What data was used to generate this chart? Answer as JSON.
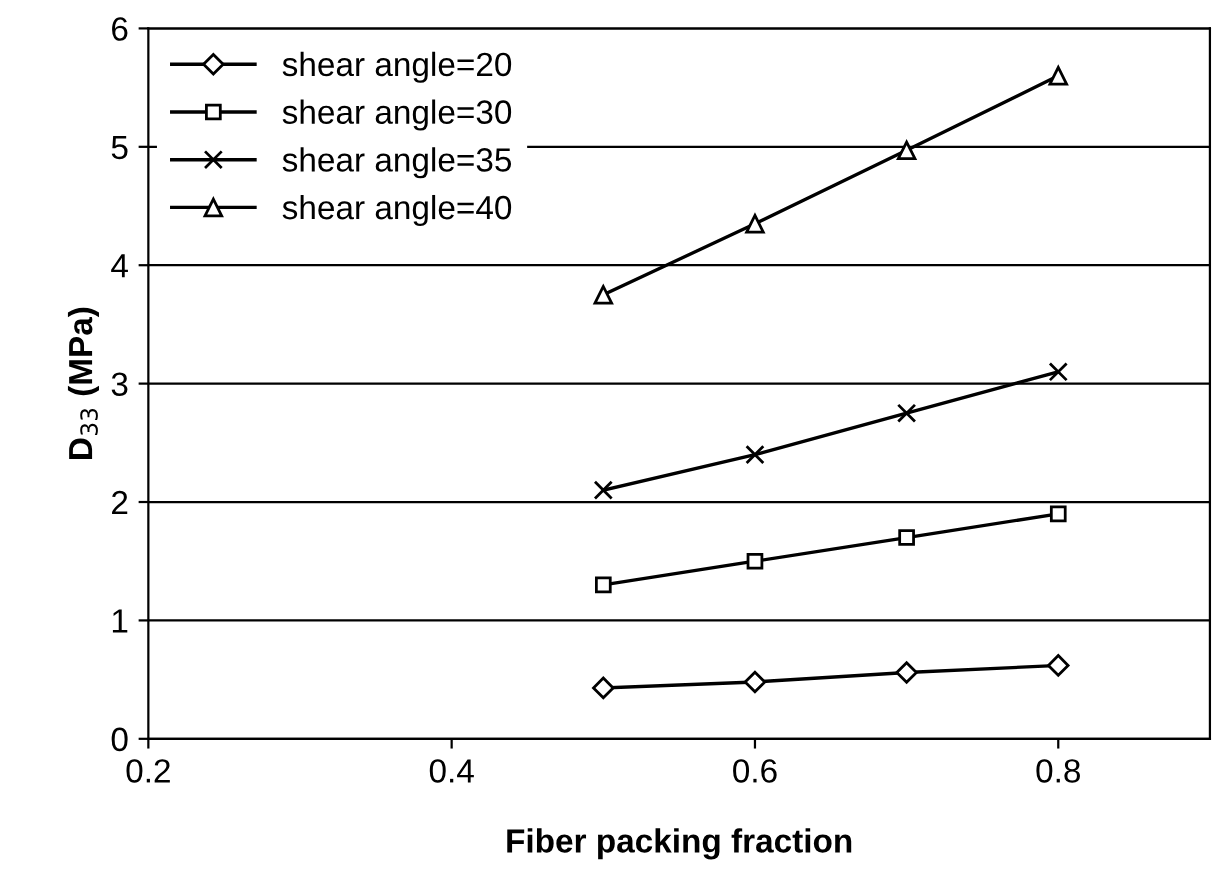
{
  "chart_data": {
    "type": "line",
    "xlabel": "Fiber packing fraction",
    "ylabel": "D$_{33}$ (MPa)",
    "xlim": [
      0.2,
      0.9
    ],
    "xticks": [
      0.2,
      0.4,
      0.6,
      0.8
    ],
    "ylim": [
      0,
      6
    ],
    "yticks": [
      0,
      1,
      2,
      3,
      4,
      5,
      6
    ],
    "grid": "y",
    "legend": "top left",
    "line_style": "solid",
    "series": [
      {
        "name": "shear angle=20",
        "color": "#000000",
        "marker": "diamond",
        "x": [
          0.5,
          0.6,
          0.7,
          0.8
        ],
        "values": [
          0.43,
          0.48,
          0.56,
          0.62
        ]
      },
      {
        "name": "shear angle=30",
        "color": "#000000",
        "marker": "square",
        "x": [
          0.5,
          0.6,
          0.7,
          0.8
        ],
        "values": [
          1.3,
          1.5,
          1.7,
          1.9
        ]
      },
      {
        "name": "shear angle=35",
        "color": "#000000",
        "marker": "cross",
        "x": [
          0.5,
          0.6,
          0.7,
          0.8
        ],
        "values": [
          2.1,
          2.4,
          2.75,
          3.1
        ]
      },
      {
        "name": "shear angle=40",
        "color": "#000000",
        "marker": "triangle",
        "x": [
          0.5,
          0.6,
          0.7,
          0.8
        ],
        "values": [
          3.75,
          4.35,
          4.97,
          5.6
        ]
      }
    ]
  }
}
